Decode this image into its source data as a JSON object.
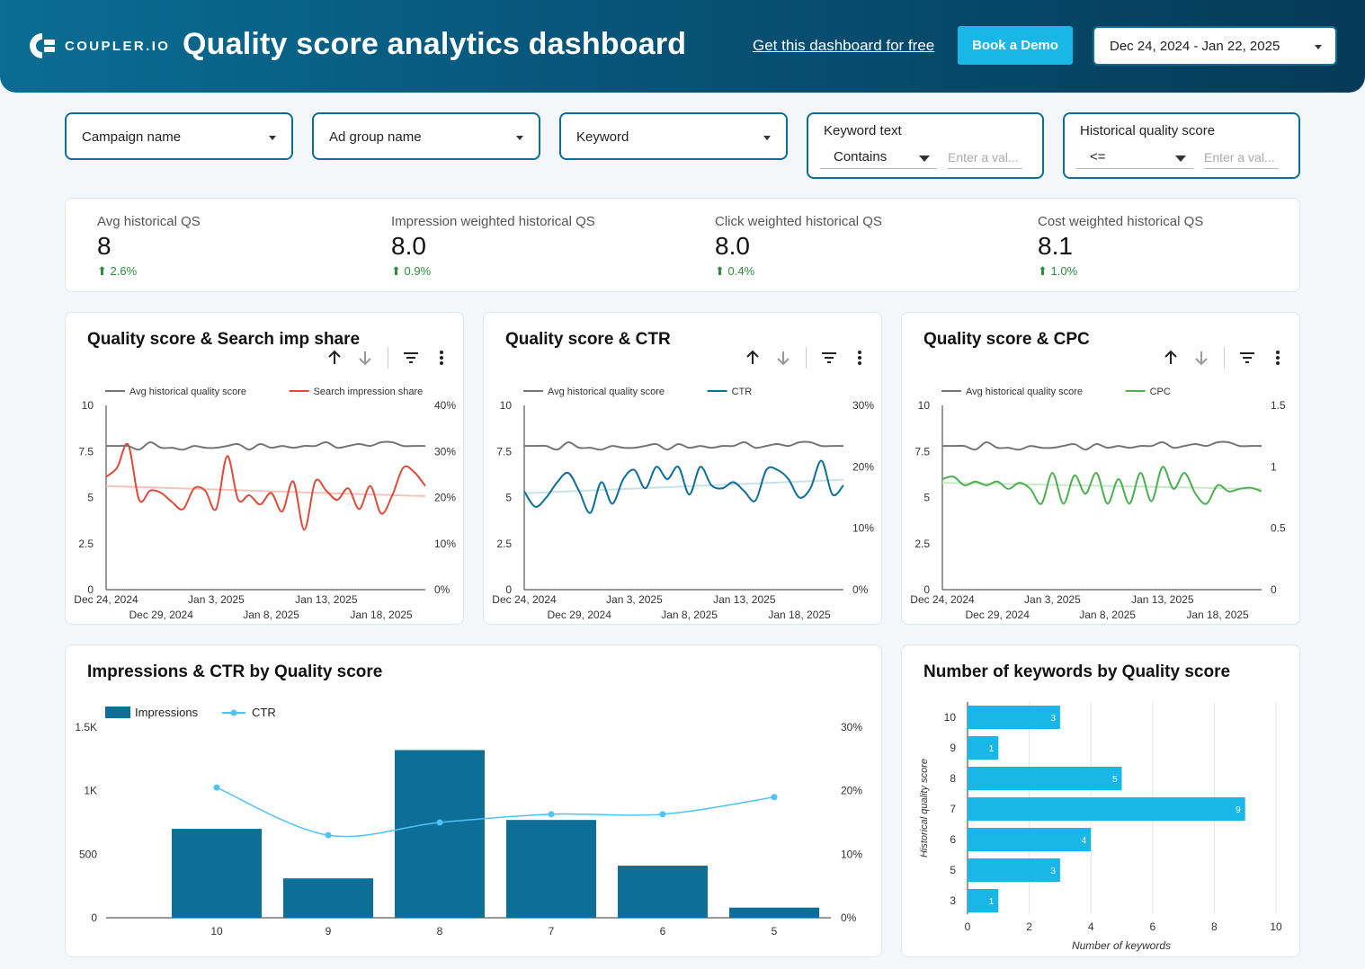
{
  "header": {
    "logo_text": "COUPLER.IO",
    "title": "Quality score analytics dashboard",
    "free_link": "Get this dashboard for free",
    "demo_button": "Book a Demo",
    "date_range": "Dec 24, 2024 - Jan 22, 2025",
    "bg_color": "#075478",
    "accent_color": "#19b6e8"
  },
  "filters": {
    "campaign": "Campaign name",
    "ad_group": "Ad group name",
    "keyword": "Keyword",
    "keyword_text": {
      "label": "Keyword text",
      "operator": "Contains",
      "placeholder": "Enter a val..."
    },
    "historical_qs": {
      "label": "Historical quality score",
      "operator": "<=",
      "placeholder": "Enter a val..."
    }
  },
  "kpis": [
    {
      "label": "Avg historical QS",
      "value": "8",
      "delta": "2.6%"
    },
    {
      "label": "Impression weighted historical QS",
      "value": "8.0",
      "delta": "0.9%"
    },
    {
      "label": "Click weighted historical QS",
      "value": "8.0",
      "delta": "0.4%"
    },
    {
      "label": "Cost weighted historical QS",
      "value": "8.1",
      "delta": "1.0%"
    }
  ],
  "chart_data": [
    {
      "type": "line",
      "title": "Quality score & Search imp share",
      "x_ticks": [
        "Dec 24, 2024",
        "Dec 29, 2024",
        "Jan 3, 2025",
        "Jan 8, 2025",
        "Jan 13, 2025",
        "Jan 18, 2025"
      ],
      "y_left": {
        "ticks": [
          "0",
          "2.5",
          "5",
          "7.5",
          "10"
        ],
        "range": [
          0,
          10
        ]
      },
      "y_right": {
        "ticks": [
          "0%",
          "10%",
          "20%",
          "30%",
          "40%"
        ],
        "range": [
          0,
          40
        ]
      },
      "series": [
        {
          "name": "Avg historical quality score",
          "axis": "left",
          "color": "#757575",
          "values": [
            7.8,
            7.8,
            7.8,
            7.6,
            8.0,
            7.7,
            7.7,
            7.6,
            7.8,
            7.7,
            7.7,
            7.8,
            7.9,
            7.6,
            7.9,
            7.7,
            7.8,
            7.7,
            7.8,
            7.8,
            8.0,
            7.7,
            7.8,
            7.9,
            7.8,
            8.0,
            8.0,
            7.8,
            7.8,
            7.8
          ]
        },
        {
          "name": "Search impression share",
          "axis": "right",
          "color": "#dd4b39",
          "values": [
            24.5,
            26.5,
            31.5,
            19.5,
            21.5,
            21,
            19,
            17.5,
            22,
            21.5,
            17.5,
            29,
            19.5,
            20.5,
            18.5,
            21,
            17,
            23.5,
            13,
            23.5,
            21.5,
            19.5,
            22,
            17.5,
            22.5,
            16.5,
            20.5,
            26.5,
            25.5,
            22.5
          ]
        },
        {
          "name": "Search impression share trend",
          "axis": "right",
          "color": "#f4c3bc",
          "trend": [
            22.5,
            20.3
          ]
        }
      ]
    },
    {
      "type": "line",
      "title": "Quality score & CTR",
      "x_ticks": [
        "Dec 24, 2024",
        "Dec 29, 2024",
        "Jan 3, 2025",
        "Jan 8, 2025",
        "Jan 13, 2025",
        "Jan 18, 2025"
      ],
      "y_left": {
        "ticks": [
          "0",
          "2.5",
          "5",
          "7.5",
          "10"
        ],
        "range": [
          0,
          10
        ]
      },
      "y_right": {
        "ticks": [
          "0%",
          "10%",
          "20%",
          "30%"
        ],
        "range": [
          0,
          30
        ]
      },
      "series": [
        {
          "name": "Avg historical quality score",
          "axis": "left",
          "color": "#757575",
          "values": [
            7.8,
            7.8,
            7.8,
            7.6,
            8.0,
            7.7,
            7.7,
            7.6,
            7.8,
            7.7,
            7.7,
            7.8,
            7.9,
            7.6,
            7.9,
            7.7,
            7.8,
            7.7,
            7.8,
            7.8,
            8.0,
            7.7,
            7.8,
            7.9,
            7.8,
            8.0,
            8.0,
            7.8,
            7.8,
            7.8
          ]
        },
        {
          "name": "CTR",
          "axis": "right",
          "color": "#0d6e97",
          "values": [
            16,
            13.5,
            15,
            17.5,
            19,
            16,
            12.5,
            17.5,
            14,
            18,
            19.5,
            16.5,
            20,
            18,
            20,
            15.5,
            20,
            17,
            16.5,
            17.5,
            16,
            14.5,
            19.5,
            19.5,
            18,
            15,
            16.5,
            21,
            15.5,
            17
          ]
        },
        {
          "name": "CTR trend",
          "axis": "right",
          "color": "#c8e1e9",
          "trend": [
            15.7,
            17.9
          ]
        }
      ]
    },
    {
      "type": "line",
      "title": "Quality score & CPC",
      "x_ticks": [
        "Dec 24, 2024",
        "Dec 29, 2024",
        "Jan 3, 2025",
        "Jan 8, 2025",
        "Jan 13, 2025",
        "Jan 18, 2025"
      ],
      "y_left": {
        "ticks": [
          "0",
          "2.5",
          "5",
          "7.5",
          "10"
        ],
        "range": [
          0,
          10
        ]
      },
      "y_right": {
        "ticks": [
          "0",
          "0.5",
          "1",
          "1.5"
        ],
        "range": [
          0,
          1.5
        ]
      },
      "series": [
        {
          "name": "Avg historical quality score",
          "axis": "left",
          "color": "#757575",
          "values": [
            7.8,
            7.8,
            7.8,
            7.6,
            8.0,
            7.7,
            7.7,
            7.6,
            7.8,
            7.7,
            7.7,
            7.8,
            7.9,
            7.6,
            7.9,
            7.7,
            7.8,
            7.7,
            7.8,
            7.8,
            8.0,
            7.7,
            7.8,
            7.9,
            7.8,
            8.0,
            8.0,
            7.8,
            7.8,
            7.8
          ]
        },
        {
          "name": "CPC",
          "axis": "right",
          "color": "#4caf50",
          "values": [
            0.9,
            0.92,
            0.85,
            0.88,
            0.85,
            0.88,
            0.82,
            0.87,
            0.82,
            0.7,
            0.95,
            0.7,
            0.93,
            0.78,
            0.95,
            0.7,
            0.9,
            0.7,
            0.95,
            0.72,
            1.0,
            0.82,
            0.95,
            0.78,
            0.7,
            0.85,
            0.8,
            0.82,
            0.83,
            0.8
          ]
        },
        {
          "name": "CPC trend",
          "axis": "right",
          "color": "#c9e7cb",
          "trend": [
            0.87,
            0.82
          ]
        }
      ]
    },
    {
      "type": "bar",
      "title": "Impressions & CTR by Quality score",
      "categories": [
        "10",
        "9",
        "8",
        "7",
        "6",
        "5"
      ],
      "y_left": {
        "ticks": [
          "0",
          "500",
          "1K",
          "1.5K"
        ],
        "range": [
          0,
          1500
        ]
      },
      "y_right": {
        "ticks": [
          "0%",
          "10%",
          "20%",
          "30%"
        ],
        "range": [
          0,
          30
        ]
      },
      "series": [
        {
          "name": "Impressions",
          "color": "#0d6e97",
          "values": [
            700,
            310,
            1320,
            770,
            410,
            80
          ]
        },
        {
          "name": "CTR",
          "color": "#4fc3f7",
          "values": [
            20.5,
            13,
            15,
            16.3,
            16.3,
            19
          ]
        }
      ]
    },
    {
      "type": "bar",
      "orientation": "horizontal",
      "title": "Number of keywords by Quality score",
      "categories": [
        "10",
        "9",
        "8",
        "7",
        "6",
        "5",
        "3"
      ],
      "values": [
        3,
        1,
        5,
        9,
        4,
        3,
        1
      ],
      "xlabel": "Number of keywords",
      "ylabel": "Historical quality score",
      "x_ticks": [
        "0",
        "2",
        "4",
        "6",
        "8",
        "10"
      ],
      "xlim": [
        0,
        10
      ],
      "color": "#19b6e8"
    }
  ]
}
